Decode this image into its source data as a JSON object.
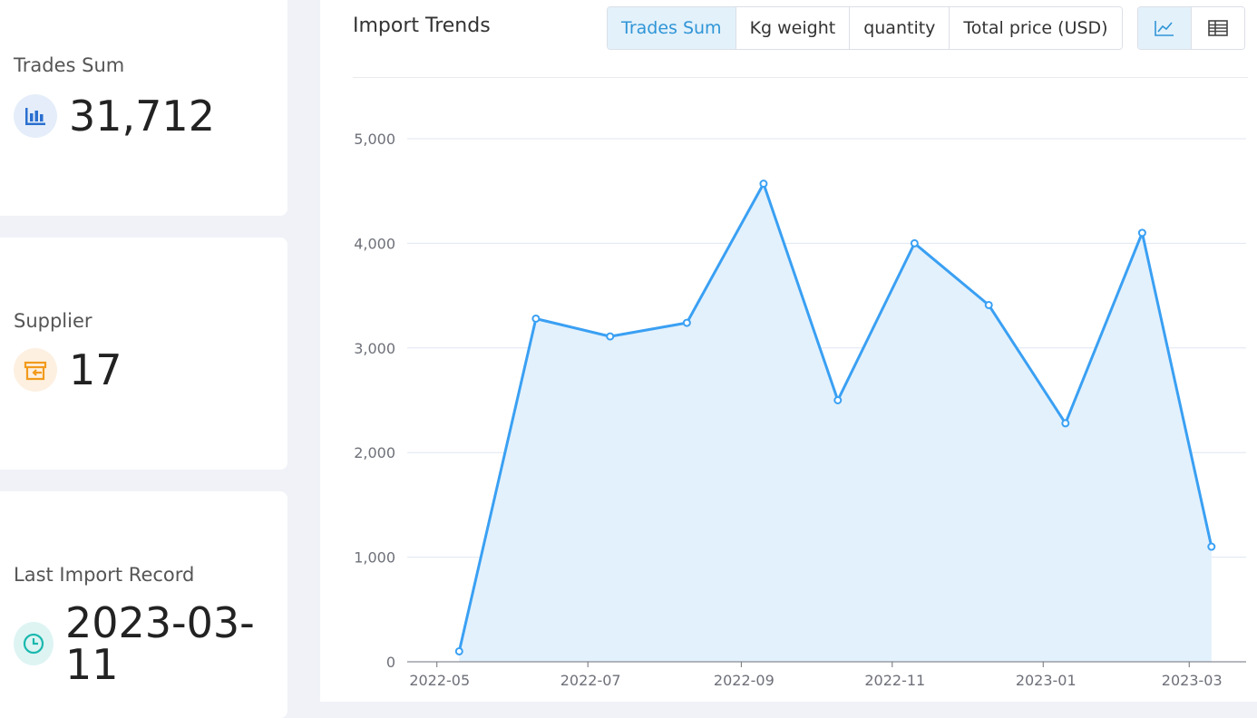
{
  "stats": [
    {
      "label": "Trades Sum",
      "value": "31,712",
      "icon": "bar-chart-icon",
      "color": "#2a6fd0"
    },
    {
      "label": "Supplier",
      "value": "17",
      "icon": "supplier-store-icon",
      "color": "#f29a1c"
    },
    {
      "label": "Last Import Record",
      "value": "2023-03-11",
      "icon": "clock-icon",
      "color": "#1bb8ae"
    }
  ],
  "panel": {
    "title": "Import Trends",
    "tabs": [
      "Trades Sum",
      "Kg weight",
      "quantity",
      "Total price (USD)"
    ],
    "active_tab": "Trades Sum",
    "views": [
      "line-chart-icon",
      "table-icon"
    ]
  },
  "colors": {
    "accent": "#3aa0f3",
    "area": "#e3f1fc",
    "active_tab_bg": "#e3f1fb",
    "active_tab_text": "#2f95d6"
  },
  "chart_data": {
    "type": "area",
    "x": [
      "2022-05-10",
      "2022-06-10",
      "2022-07-10",
      "2022-08-10",
      "2022-09-10",
      "2022-10-10",
      "2022-11-10",
      "2022-12-10",
      "2023-01-10",
      "2023-02-10",
      "2023-03-10"
    ],
    "y": [
      100,
      3280,
      3110,
      3240,
      4570,
      2500,
      4000,
      3410,
      2280,
      4100,
      1100
    ],
    "x_ticks": [
      "2022-05",
      "2022-07",
      "2022-09",
      "2022-11",
      "2023-01",
      "2023-03"
    ],
    "y_ticks": [
      "0",
      "1,000",
      "2,000",
      "3,000",
      "4,000",
      "5,000"
    ],
    "ylim": [
      0,
      5000
    ],
    "grid": true,
    "title": "",
    "xlabel": "",
    "ylabel": ""
  }
}
